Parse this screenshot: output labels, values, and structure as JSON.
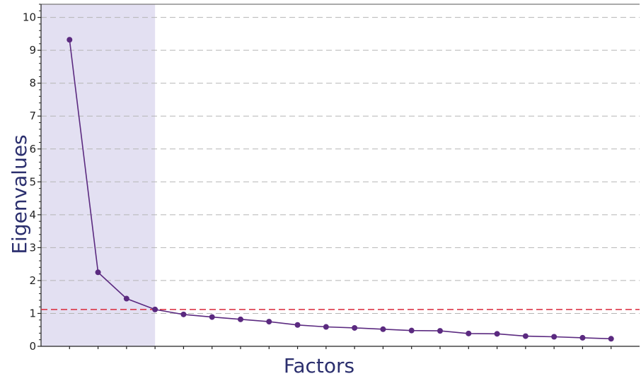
{
  "chart_data": {
    "type": "line",
    "title": "",
    "xlabel": "Factors",
    "ylabel": "Eigenvalues",
    "ylim": [
      0,
      10.4
    ],
    "yticks": [
      0,
      1,
      2,
      3,
      4,
      5,
      6,
      7,
      8,
      9,
      10
    ],
    "grid": "horizontal dashed",
    "x": [
      1,
      2,
      3,
      4,
      5,
      6,
      7,
      8,
      9,
      10,
      11,
      12,
      13,
      14,
      15,
      16,
      17,
      18,
      19,
      20
    ],
    "xlim": [
      0,
      21
    ],
    "series": [
      {
        "values": [
          9.32,
          2.25,
          1.45,
          1.12,
          0.97,
          0.89,
          0.82,
          0.75,
          0.65,
          0.59,
          0.56,
          0.52,
          0.48,
          0.47,
          0.39,
          0.38,
          0.31,
          0.29,
          0.26,
          0.23
        ],
        "color": "#5b2a80"
      }
    ],
    "reference_line": {
      "value": 1.12,
      "color": "#d9283a",
      "style": "dashed"
    },
    "highlight_region": {
      "x_from": 0,
      "x_to": 4,
      "color": "#e3e0f2"
    }
  }
}
